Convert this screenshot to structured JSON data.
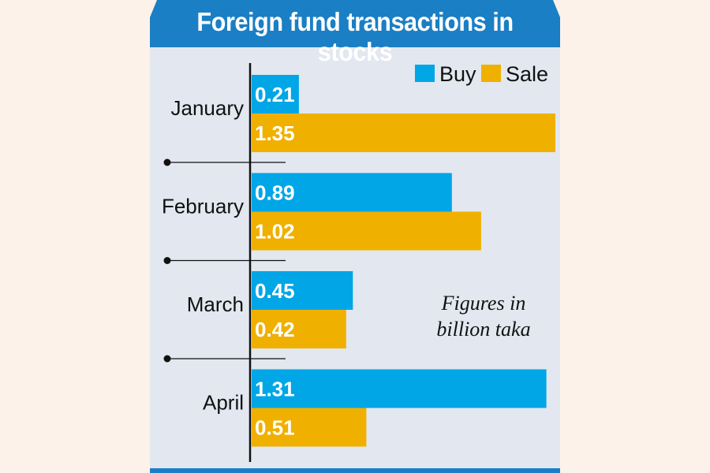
{
  "chart_data": {
    "type": "bar",
    "orientation": "horizontal",
    "title": "Foreign fund transactions in stocks",
    "categories": [
      "January",
      "February",
      "March",
      "April"
    ],
    "series": [
      {
        "name": "Buy",
        "values": [
          0.21,
          0.89,
          0.45,
          1.31
        ],
        "color": "#00a6e6",
        "labels": [
          "0.21",
          "0.89",
          "0.45",
          "1.31"
        ]
      },
      {
        "name": "Sale",
        "values": [
          1.35,
          1.02,
          0.42,
          0.51
        ],
        "color": "#f0b000",
        "labels": [
          "1.35",
          "1.02",
          "0.42",
          "0.51"
        ]
      }
    ],
    "xlim": [
      0,
      1.35
    ],
    "legend_position": "top-right",
    "grid": false,
    "note": [
      "Figures in",
      "billion taka"
    ]
  },
  "colors": {
    "title_background": "#1a7fc4",
    "panel_background": "#e2e7f0",
    "page_background": "#fdf2ea"
  }
}
